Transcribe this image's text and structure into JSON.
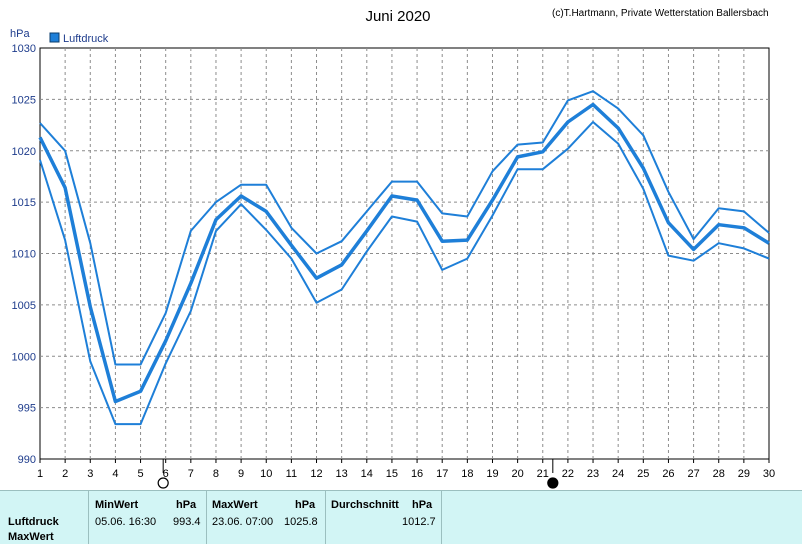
{
  "title": "Juni 2020",
  "copyright": "(c)T.Hartmann, Private Wetterstation Ballersbach",
  "legend": "Luftdruck",
  "colors": {
    "line": "#1e7fd8",
    "grid": "#8c8c8c",
    "footer_bg": "#d2f5f5"
  },
  "chart_data": {
    "type": "line",
    "title": "Juni 2020",
    "ylabel": "hPa",
    "xlabel": "",
    "xlim": [
      1,
      30
    ],
    "ylim": [
      990,
      1030
    ],
    "x_ticks": [
      "1",
      "2",
      "3",
      "4",
      "5",
      "6",
      "7",
      "8",
      "9",
      "10",
      "11",
      "12",
      "13",
      "14",
      "15",
      "16",
      "17",
      "18",
      "19",
      "20",
      "21",
      "22",
      "23",
      "24",
      "25",
      "26",
      "27",
      "28",
      "29",
      "30"
    ],
    "y_ticks": [
      "990",
      "995",
      "1000",
      "1005",
      "1010",
      "1015",
      "1020",
      "1025",
      "1030"
    ],
    "grid": true,
    "legend_position": "top-left",
    "x": [
      1,
      2,
      3,
      4,
      5,
      6,
      7,
      8,
      9,
      10,
      11,
      12,
      13,
      14,
      15,
      16,
      17,
      18,
      19,
      20,
      21,
      22,
      23,
      24,
      25,
      26,
      27,
      28,
      29,
      30
    ],
    "series": [
      {
        "name": "Luftdruck",
        "role": "max",
        "values": [
          1022.7,
          1020.0,
          1011.0,
          999.2,
          999.2,
          1004.2,
          1012.2,
          1015.0,
          1016.7,
          1016.7,
          1012.5,
          1010.0,
          1011.2,
          1014.1,
          1017.0,
          1017.0,
          1013.9,
          1013.6,
          1018.0,
          1020.6,
          1020.8,
          1024.9,
          1025.8,
          1024.1,
          1021.5,
          1016.0,
          1011.4,
          1014.4,
          1014.1,
          1012.0
        ]
      },
      {
        "name": "Luftdruck",
        "role": "mean",
        "values": [
          1021.3,
          1016.4,
          1004.8,
          995.6,
          996.6,
          1001.5,
          1007.1,
          1013.3,
          1015.6,
          1014.1,
          1010.8,
          1007.6,
          1008.9,
          1012.2,
          1015.6,
          1015.2,
          1011.2,
          1011.3,
          1015.2,
          1019.4,
          1019.9,
          1022.8,
          1024.5,
          1022.2,
          1018.3,
          1013.0,
          1010.4,
          1012.8,
          1012.5,
          1011.0
        ]
      },
      {
        "name": "Luftdruck",
        "role": "min",
        "values": [
          1019.1,
          1011.3,
          999.5,
          993.4,
          993.4,
          999.3,
          1004.4,
          1012.2,
          1014.8,
          1012.3,
          1009.5,
          1005.2,
          1006.5,
          1010.2,
          1013.6,
          1013.1,
          1008.4,
          1009.5,
          1013.7,
          1018.2,
          1018.2,
          1020.2,
          1022.8,
          1020.7,
          1016.3,
          1009.8,
          1009.3,
          1011.0,
          1010.5,
          1009.5
        ]
      }
    ],
    "moon_phases": [
      {
        "day": 5.9,
        "phase": "full"
      },
      {
        "day": 21.4,
        "phase": "new"
      }
    ]
  },
  "summary": {
    "row_labels": [
      "Luftdruck",
      "MaxWert"
    ],
    "headers": {
      "min": "MinWert",
      "max": "MaxWert",
      "avg": "Durchschnitt",
      "unit": "hPa"
    },
    "min": {
      "datetime": "05.06.  16:30",
      "value": "993.4"
    },
    "max": {
      "datetime": "23.06.  07:00",
      "value": "1025.8"
    },
    "avg": {
      "value": "1012.7"
    }
  }
}
